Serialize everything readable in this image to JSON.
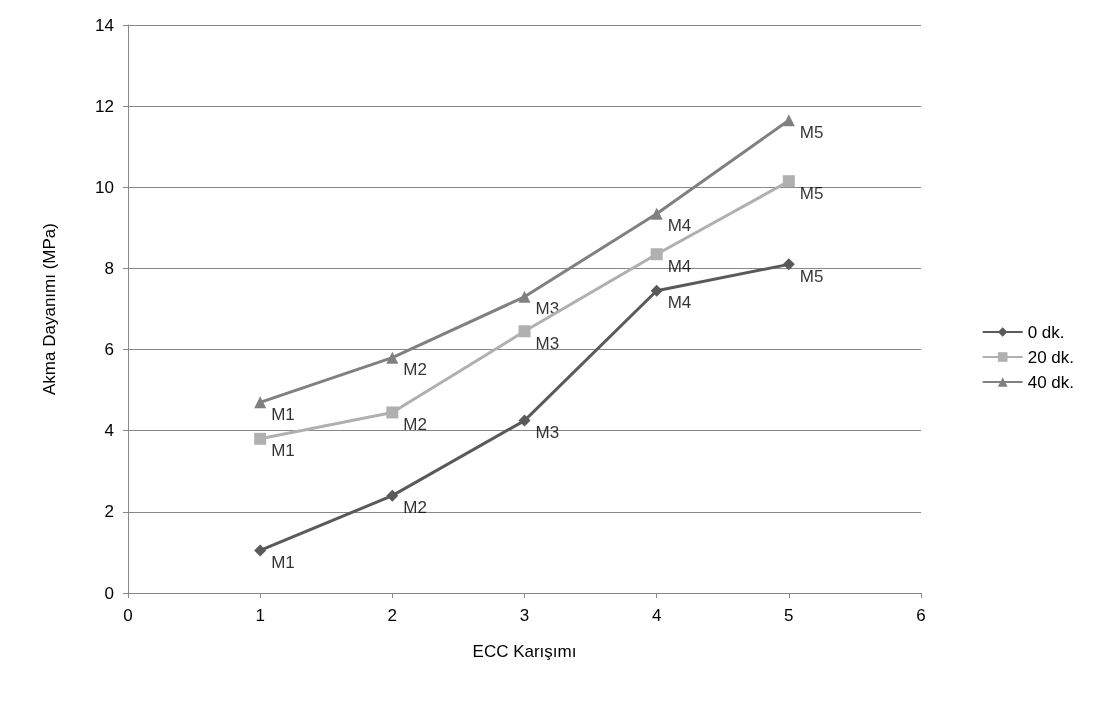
{
  "chart_data": {
    "type": "line",
    "xlabel": "ECC Karışımı",
    "ylabel": "Akma Dayanımı (MPa)",
    "x": [
      1,
      2,
      3,
      4,
      5
    ],
    "series": [
      {
        "name": "0 dk.",
        "color": "#5a5a5a",
        "marker": "diamond",
        "values": [
          1.05,
          2.4,
          4.25,
          7.45,
          8.1
        ]
      },
      {
        "name": "20 dk.",
        "color": "#b0b0b0",
        "marker": "square",
        "values": [
          3.8,
          4.45,
          6.45,
          8.35,
          10.15
        ]
      },
      {
        "name": "40 dk.",
        "color": "#808080",
        "marker": "triangle",
        "values": [
          4.7,
          5.8,
          7.3,
          9.35,
          11.65
        ]
      }
    ],
    "xlim": [
      0,
      6
    ],
    "xticks": [
      0,
      1,
      2,
      3,
      4,
      5,
      6
    ],
    "ylim": [
      0,
      14
    ],
    "yticks": [
      0,
      2,
      4,
      6,
      8,
      10,
      12,
      14
    ],
    "grid": "y",
    "legend": "right",
    "line_style": "solid",
    "annotations": [
      {
        "text": "M1",
        "x": 1,
        "y": 1.05
      },
      {
        "text": "M2",
        "x": 2,
        "y": 2.4
      },
      {
        "text": "M3",
        "x": 3,
        "y": 4.25
      },
      {
        "text": "M4",
        "x": 4,
        "y": 7.45
      },
      {
        "text": "M5",
        "x": 5,
        "y": 8.1
      },
      {
        "text": "M1",
        "x": 1,
        "y": 3.8
      },
      {
        "text": "M2",
        "x": 2,
        "y": 4.45
      },
      {
        "text": "M3",
        "x": 3,
        "y": 6.45
      },
      {
        "text": "M4",
        "x": 4,
        "y": 8.35
      },
      {
        "text": "M5",
        "x": 5,
        "y": 10.15
      },
      {
        "text": "M1",
        "x": 1,
        "y": 4.7
      },
      {
        "text": "M2",
        "x": 2,
        "y": 5.8
      },
      {
        "text": "M3",
        "x": 3,
        "y": 7.3
      },
      {
        "text": "M4",
        "x": 4,
        "y": 9.35
      },
      {
        "text": "M5",
        "x": 5,
        "y": 11.65
      }
    ]
  }
}
